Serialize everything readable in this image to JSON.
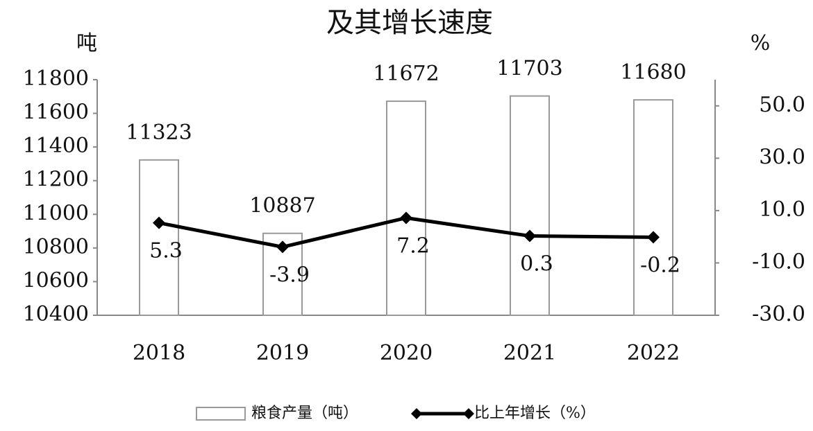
{
  "chart_data": {
    "type": "combo",
    "title": "及其增长速度",
    "y_unit": "吨",
    "y2_unit": "%",
    "categories": [
      "2018",
      "2019",
      "2020",
      "2021",
      "2022"
    ],
    "series": [
      {
        "name": "粮食产量（吨）",
        "type": "bar",
        "color": "#ffffff",
        "stroke": "#999999",
        "values": [
          11323,
          10887,
          11672,
          11703,
          11680
        ]
      },
      {
        "name": "比上年增长（%）",
        "type": "line",
        "axis": "y2",
        "color": "#000000",
        "values": [
          5.3,
          -3.9,
          7.2,
          0.3,
          -0.2
        ]
      }
    ],
    "ylim": [
      10400,
      11800
    ],
    "yticks": [
      10400,
      10600,
      10800,
      11000,
      11200,
      11400,
      11600,
      11800
    ],
    "y2lim": [
      -30,
      60
    ],
    "y2ticks": [
      {
        "value": -30,
        "label": "-30.0"
      },
      {
        "value": -10,
        "label": "-10.0"
      },
      {
        "value": 10,
        "label": "10.0"
      },
      {
        "value": 30,
        "label": "30.0"
      },
      {
        "value": 50,
        "label": "50.0"
      }
    ],
    "legend": "bottom"
  }
}
